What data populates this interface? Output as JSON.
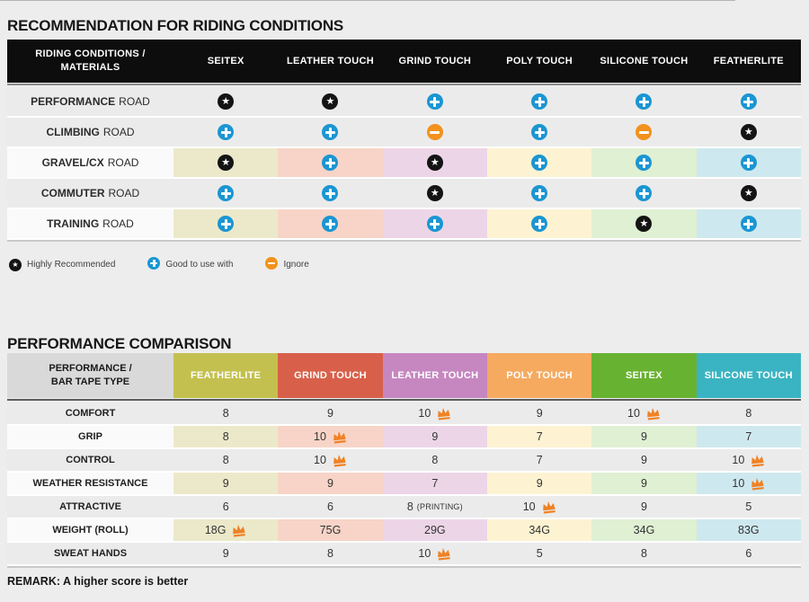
{
  "colors": {
    "page_bg": "#ededed",
    "header_black": "#0d0d0d",
    "row_gray": "#ebebeb",
    "row_white": "#fafafa",
    "star_badge": "#141414",
    "plus_badge": "#1b96d2",
    "minus_badge": "#f2921d",
    "crown": "#f08224",
    "column_tints": [
      "#ece9ca",
      "#f7d4c7",
      "#edd5e8",
      "#fdf3d2",
      "#dff0d3",
      "#cee8ef"
    ]
  },
  "recommendation": {
    "title": "RECOMMENDATION FOR RIDING CONDITIONS",
    "header": {
      "label_line1": "RIDING CONDITIONS /",
      "label_line2": "MATERIALS",
      "columns": [
        "SEITEX",
        "LEATHER TOUCH",
        "GRIND TOUCH",
        "POLY TOUCH",
        "SILICONE TOUCH",
        "FEATHERLITE"
      ]
    },
    "rows": [
      {
        "label_bold": "PERFORMANCE",
        "label_rest": "ROAD",
        "tinted": false,
        "cells": [
          "star",
          "star",
          "plus",
          "plus",
          "plus",
          "plus"
        ]
      },
      {
        "label_bold": "CLIMBING",
        "label_rest": "ROAD",
        "tinted": false,
        "cells": [
          "plus",
          "plus",
          "minus",
          "plus",
          "minus",
          "star"
        ]
      },
      {
        "label_bold": "GRAVEL/CX",
        "label_rest": "ROAD",
        "tinted": true,
        "cells": [
          "star",
          "plus",
          "star",
          "plus",
          "plus",
          "plus"
        ]
      },
      {
        "label_bold": "COMMUTER",
        "label_rest": "ROAD",
        "tinted": false,
        "cells": [
          "plus",
          "plus",
          "star",
          "plus",
          "plus",
          "star"
        ]
      },
      {
        "label_bold": "TRAINING",
        "label_rest": "ROAD",
        "tinted": true,
        "cells": [
          "plus",
          "plus",
          "plus",
          "plus",
          "star",
          "plus"
        ]
      }
    ],
    "legend": [
      {
        "icon": "star",
        "label": "Highly Recommended"
      },
      {
        "icon": "plus",
        "label": "Good to use with"
      },
      {
        "icon": "minus",
        "label": "Ignore"
      }
    ]
  },
  "comparison": {
    "title": "PERFORMANCE COMPARISON",
    "header": {
      "label_line1": "PERFORMANCE /",
      "label_line2": "BAR TAPE TYPE",
      "columns": [
        {
          "name": "FEATHERLITE",
          "color": "#c3c04f"
        },
        {
          "name": "GRIND TOUCH",
          "color": "#d8604a"
        },
        {
          "name": "LEATHER TOUCH",
          "color": "#c687c1"
        },
        {
          "name": "POLY TOUCH",
          "color": "#f5aa60"
        },
        {
          "name": "SEITEX",
          "color": "#68b231"
        },
        {
          "name": "SILICONE TOUCH",
          "color": "#3ab4c2"
        }
      ]
    },
    "rows": [
      {
        "label": "COMFORT",
        "tinted": false,
        "cells": [
          {
            "v": "8"
          },
          {
            "v": "9"
          },
          {
            "v": "10",
            "crown": true
          },
          {
            "v": "9"
          },
          {
            "v": "10",
            "crown": true
          },
          {
            "v": "8"
          }
        ]
      },
      {
        "label": "GRIP",
        "tinted": true,
        "cells": [
          {
            "v": "8"
          },
          {
            "v": "10",
            "crown": true
          },
          {
            "v": "9"
          },
          {
            "v": "7"
          },
          {
            "v": "9"
          },
          {
            "v": "7"
          }
        ]
      },
      {
        "label": "CONTROL",
        "tinted": false,
        "cells": [
          {
            "v": "8"
          },
          {
            "v": "10",
            "crown": true
          },
          {
            "v": "8"
          },
          {
            "v": "7"
          },
          {
            "v": "9"
          },
          {
            "v": "10",
            "crown": true
          }
        ]
      },
      {
        "label": "WEATHER RESISTANCE",
        "tinted": true,
        "cells": [
          {
            "v": "9"
          },
          {
            "v": "9"
          },
          {
            "v": "7"
          },
          {
            "v": "9"
          },
          {
            "v": "9"
          },
          {
            "v": "10",
            "crown": true
          }
        ]
      },
      {
        "label": "ATTRACTIVE",
        "tinted": false,
        "cells": [
          {
            "v": "6"
          },
          {
            "v": "6"
          },
          {
            "v": "8",
            "suffix": "(PRINTING)"
          },
          {
            "v": "10",
            "crown": true
          },
          {
            "v": "9"
          },
          {
            "v": "5"
          }
        ]
      },
      {
        "label": "WEIGHT (ROLL)",
        "tinted": true,
        "cells": [
          {
            "v": "18G",
            "crown": true
          },
          {
            "v": "75G"
          },
          {
            "v": "29G"
          },
          {
            "v": "34G"
          },
          {
            "v": "34G"
          },
          {
            "v": "83G"
          }
        ]
      },
      {
        "label": "SWEAT HANDS",
        "tinted": false,
        "cells": [
          {
            "v": "9"
          },
          {
            "v": "8"
          },
          {
            "v": "10",
            "crown": true
          },
          {
            "v": "5"
          },
          {
            "v": "8"
          },
          {
            "v": "6"
          }
        ]
      }
    ],
    "remark": "REMARK: A higher score is better"
  }
}
